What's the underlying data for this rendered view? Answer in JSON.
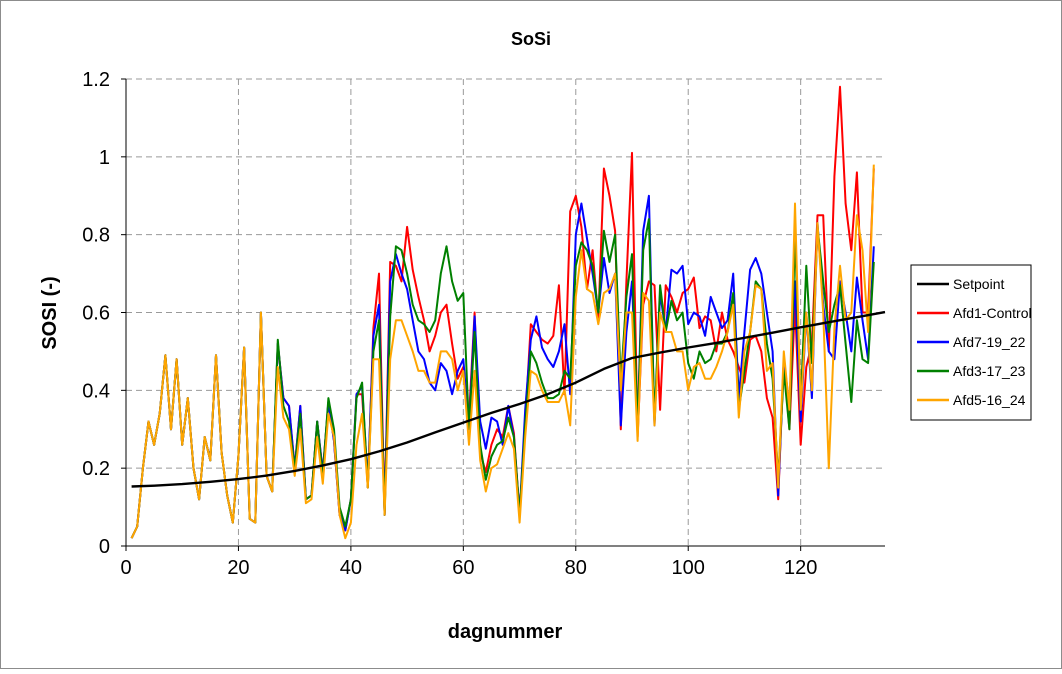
{
  "chart_data": {
    "type": "line",
    "title": "SoSi",
    "xlabel": "dagnummer",
    "ylabel": "SOSI (-)",
    "xlim": [
      0,
      135
    ],
    "ylim": [
      0,
      1.2
    ],
    "xticks": [
      0,
      20,
      40,
      60,
      80,
      100,
      120
    ],
    "yticks": [
      0,
      0.2,
      0.4,
      0.6,
      0.8,
      1,
      1.2
    ],
    "ytick_labels": [
      "0",
      "0.2",
      "0.4",
      "0.6",
      "0.8",
      "1",
      "1.2"
    ],
    "grid": true,
    "legend_position": "right",
    "series": [
      {
        "name": "Setpoint",
        "color": "#000000",
        "points": [
          [
            1,
            0.153
          ],
          [
            5,
            0.155
          ],
          [
            10,
            0.159
          ],
          [
            15,
            0.165
          ],
          [
            20,
            0.172
          ],
          [
            25,
            0.181
          ],
          [
            30,
            0.193
          ],
          [
            35,
            0.207
          ],
          [
            40,
            0.223
          ],
          [
            45,
            0.243
          ],
          [
            50,
            0.266
          ],
          [
            55,
            0.292
          ],
          [
            60,
            0.317
          ],
          [
            65,
            0.342
          ],
          [
            70,
            0.365
          ],
          [
            75,
            0.39
          ],
          [
            80,
            0.42
          ],
          [
            85,
            0.455
          ],
          [
            90,
            0.483
          ],
          [
            95,
            0.497
          ],
          [
            100,
            0.51
          ],
          [
            105,
            0.522
          ],
          [
            110,
            0.535
          ],
          [
            115,
            0.548
          ],
          [
            120,
            0.562
          ],
          [
            125,
            0.575
          ],
          [
            130,
            0.588
          ],
          [
            135,
            0.601
          ]
        ]
      },
      {
        "name": "Afd1-Control",
        "color": "#ff0000",
        "x": [
          1,
          2,
          3,
          4,
          5,
          6,
          7,
          8,
          9,
          10,
          11,
          12,
          13,
          14,
          15,
          16,
          17,
          18,
          19,
          20,
          21,
          22,
          23,
          24,
          25,
          26,
          27,
          28,
          29,
          30,
          31,
          32,
          33,
          34,
          35,
          36,
          37,
          38,
          39,
          40,
          41,
          42,
          43,
          44,
          45,
          46,
          47,
          48,
          49,
          50,
          51,
          52,
          53,
          54,
          55,
          56,
          57,
          58,
          59,
          60,
          61,
          62,
          63,
          64,
          65,
          66,
          67,
          68,
          69,
          70,
          71,
          72,
          73,
          74,
          75,
          76,
          77,
          78,
          79,
          80,
          81,
          82,
          83,
          84,
          85,
          86,
          87,
          88,
          89,
          90,
          91,
          92,
          93,
          94,
          95,
          96,
          97,
          98,
          99,
          100,
          101,
          102,
          103,
          104,
          105,
          106,
          107,
          108,
          109,
          110,
          111,
          112,
          113,
          114,
          115,
          116,
          117,
          118,
          119,
          120,
          121,
          122,
          123,
          124,
          125,
          126,
          127,
          128,
          129,
          130,
          131,
          132,
          133
        ],
        "values": [
          0.02,
          0.05,
          0.2,
          0.32,
          0.26,
          0.34,
          0.49,
          0.3,
          0.48,
          0.26,
          0.38,
          0.2,
          0.12,
          0.28,
          0.22,
          0.49,
          0.24,
          0.13,
          0.06,
          0.23,
          0.51,
          0.07,
          0.06,
          0.6,
          0.18,
          0.14,
          0.52,
          0.38,
          0.36,
          0.2,
          0.36,
          0.12,
          0.13,
          0.32,
          0.19,
          0.37,
          0.27,
          0.08,
          0.04,
          0.12,
          0.39,
          0.39,
          0.15,
          0.56,
          0.7,
          0.08,
          0.73,
          0.72,
          0.68,
          0.82,
          0.71,
          0.64,
          0.58,
          0.5,
          0.54,
          0.6,
          0.62,
          0.52,
          0.43,
          0.46,
          0.33,
          0.6,
          0.24,
          0.19,
          0.26,
          0.3,
          0.28,
          0.36,
          0.29,
          0.08,
          0.32,
          0.57,
          0.55,
          0.53,
          0.52,
          0.54,
          0.67,
          0.39,
          0.86,
          0.9,
          0.82,
          0.66,
          0.76,
          0.58,
          0.97,
          0.9,
          0.81,
          0.3,
          0.68,
          1.01,
          0.28,
          0.62,
          0.68,
          0.67,
          0.35,
          0.67,
          0.64,
          0.6,
          0.65,
          0.66,
          0.69,
          0.56,
          0.59,
          0.58,
          0.5,
          0.6,
          0.53,
          0.5,
          0.46,
          0.42,
          0.53,
          0.54,
          0.5,
          0.38,
          0.33,
          0.12,
          0.48,
          0.3,
          0.62,
          0.26,
          0.46,
          0.52,
          0.85,
          0.85,
          0.5,
          0.95,
          1.18,
          0.88,
          0.76,
          0.96,
          0.6,
          0.6,
          0.97
        ]
      },
      {
        "name": "Afd7-19_22",
        "color": "#0000ff",
        "x": [
          1,
          2,
          3,
          4,
          5,
          6,
          7,
          8,
          9,
          10,
          11,
          12,
          13,
          14,
          15,
          16,
          17,
          18,
          19,
          20,
          21,
          22,
          23,
          24,
          25,
          26,
          27,
          28,
          29,
          30,
          31,
          32,
          33,
          34,
          35,
          36,
          37,
          38,
          39,
          40,
          41,
          42,
          43,
          44,
          45,
          46,
          47,
          48,
          49,
          50,
          51,
          52,
          53,
          54,
          55,
          56,
          57,
          58,
          59,
          60,
          61,
          62,
          63,
          64,
          65,
          66,
          67,
          68,
          69,
          70,
          71,
          72,
          73,
          74,
          75,
          76,
          77,
          78,
          79,
          80,
          81,
          82,
          83,
          84,
          85,
          86,
          87,
          88,
          89,
          90,
          91,
          92,
          93,
          94,
          95,
          96,
          97,
          98,
          99,
          100,
          101,
          102,
          103,
          104,
          105,
          106,
          107,
          108,
          109,
          110,
          111,
          112,
          113,
          114,
          115,
          116,
          117,
          118,
          119,
          120,
          121,
          122,
          123,
          124,
          125,
          126,
          127,
          128,
          129,
          130,
          131,
          132,
          133
        ],
        "values": [
          0.02,
          0.05,
          0.2,
          0.32,
          0.26,
          0.34,
          0.49,
          0.3,
          0.48,
          0.26,
          0.38,
          0.2,
          0.12,
          0.28,
          0.22,
          0.49,
          0.24,
          0.13,
          0.06,
          0.23,
          0.51,
          0.07,
          0.06,
          0.6,
          0.18,
          0.14,
          0.52,
          0.38,
          0.36,
          0.2,
          0.36,
          0.12,
          0.13,
          0.32,
          0.19,
          0.37,
          0.27,
          0.08,
          0.04,
          0.12,
          0.39,
          0.41,
          0.16,
          0.54,
          0.62,
          0.08,
          0.68,
          0.75,
          0.7,
          0.66,
          0.58,
          0.5,
          0.48,
          0.42,
          0.4,
          0.47,
          0.45,
          0.39,
          0.45,
          0.48,
          0.3,
          0.59,
          0.32,
          0.25,
          0.33,
          0.32,
          0.26,
          0.36,
          0.28,
          0.08,
          0.35,
          0.53,
          0.59,
          0.51,
          0.48,
          0.46,
          0.5,
          0.57,
          0.39,
          0.8,
          0.88,
          0.79,
          0.7,
          0.6,
          0.74,
          0.65,
          0.7,
          0.31,
          0.55,
          0.68,
          0.3,
          0.81,
          0.9,
          0.31,
          0.65,
          0.55,
          0.71,
          0.7,
          0.72,
          0.57,
          0.6,
          0.59,
          0.54,
          0.64,
          0.6,
          0.56,
          0.58,
          0.7,
          0.38,
          0.55,
          0.71,
          0.74,
          0.7,
          0.6,
          0.5,
          0.13,
          0.48,
          0.36,
          0.68,
          0.32,
          0.6,
          0.38,
          0.83,
          0.62,
          0.5,
          0.48,
          0.68,
          0.6,
          0.5,
          0.69,
          0.58,
          0.48,
          0.77
        ]
      },
      {
        "name": "Afd3-17_23",
        "color": "#008000",
        "x": [
          1,
          2,
          3,
          4,
          5,
          6,
          7,
          8,
          9,
          10,
          11,
          12,
          13,
          14,
          15,
          16,
          17,
          18,
          19,
          20,
          21,
          22,
          23,
          24,
          25,
          26,
          27,
          28,
          29,
          30,
          31,
          32,
          33,
          34,
          35,
          36,
          37,
          38,
          39,
          40,
          41,
          42,
          43,
          44,
          45,
          46,
          47,
          48,
          49,
          50,
          51,
          52,
          53,
          54,
          55,
          56,
          57,
          58,
          59,
          60,
          61,
          62,
          63,
          64,
          65,
          66,
          67,
          68,
          69,
          70,
          71,
          72,
          73,
          74,
          75,
          76,
          77,
          78,
          79,
          80,
          81,
          82,
          83,
          84,
          85,
          86,
          87,
          88,
          89,
          90,
          91,
          92,
          93,
          94,
          95,
          96,
          97,
          98,
          99,
          100,
          101,
          102,
          103,
          104,
          105,
          106,
          107,
          108,
          109,
          110,
          111,
          112,
          113,
          114,
          115,
          116,
          117,
          118,
          119,
          120,
          121,
          122,
          123,
          124,
          125,
          126,
          127,
          128,
          129,
          130,
          131,
          132,
          133
        ],
        "values": [
          0.02,
          0.05,
          0.2,
          0.32,
          0.26,
          0.34,
          0.49,
          0.3,
          0.48,
          0.26,
          0.38,
          0.2,
          0.12,
          0.28,
          0.22,
          0.49,
          0.24,
          0.13,
          0.06,
          0.23,
          0.51,
          0.07,
          0.06,
          0.6,
          0.18,
          0.14,
          0.53,
          0.36,
          0.32,
          0.2,
          0.34,
          0.12,
          0.13,
          0.32,
          0.18,
          0.38,
          0.3,
          0.1,
          0.05,
          0.12,
          0.38,
          0.42,
          0.15,
          0.5,
          0.58,
          0.08,
          0.59,
          0.77,
          0.76,
          0.7,
          0.62,
          0.58,
          0.57,
          0.55,
          0.58,
          0.7,
          0.77,
          0.68,
          0.63,
          0.65,
          0.3,
          0.55,
          0.26,
          0.17,
          0.23,
          0.26,
          0.27,
          0.33,
          0.28,
          0.08,
          0.31,
          0.5,
          0.47,
          0.42,
          0.38,
          0.38,
          0.39,
          0.45,
          0.43,
          0.72,
          0.78,
          0.76,
          0.72,
          0.6,
          0.81,
          0.73,
          0.8,
          0.42,
          0.64,
          0.75,
          0.3,
          0.76,
          0.84,
          0.32,
          0.67,
          0.55,
          0.63,
          0.58,
          0.6,
          0.47,
          0.43,
          0.5,
          0.47,
          0.48,
          0.52,
          0.52,
          0.55,
          0.65,
          0.35,
          0.45,
          0.55,
          0.68,
          0.66,
          0.52,
          0.43,
          0.17,
          0.45,
          0.3,
          0.8,
          0.36,
          0.72,
          0.47,
          0.82,
          0.68,
          0.55,
          0.62,
          0.67,
          0.52,
          0.37,
          0.58,
          0.48,
          0.47,
          0.73
        ]
      },
      {
        "name": "Afd5-16_24",
        "color": "#ffa500",
        "x": [
          1,
          2,
          3,
          4,
          5,
          6,
          7,
          8,
          9,
          10,
          11,
          12,
          13,
          14,
          15,
          16,
          17,
          18,
          19,
          20,
          21,
          22,
          23,
          24,
          25,
          26,
          27,
          28,
          29,
          30,
          31,
          32,
          33,
          34,
          35,
          36,
          37,
          38,
          39,
          40,
          41,
          42,
          43,
          44,
          45,
          46,
          47,
          48,
          49,
          50,
          51,
          52,
          53,
          54,
          55,
          56,
          57,
          58,
          59,
          60,
          61,
          62,
          63,
          64,
          65,
          66,
          67,
          68,
          69,
          70,
          71,
          72,
          73,
          74,
          75,
          76,
          77,
          78,
          79,
          80,
          81,
          82,
          83,
          84,
          85,
          86,
          87,
          88,
          89,
          90,
          91,
          92,
          93,
          94,
          95,
          96,
          97,
          98,
          99,
          100,
          101,
          102,
          103,
          104,
          105,
          106,
          107,
          108,
          109,
          110,
          111,
          112,
          113,
          114,
          115,
          116,
          117,
          118,
          119,
          120,
          121,
          122,
          123,
          124,
          125,
          126,
          127,
          128,
          129,
          130,
          131,
          132,
          133
        ],
        "values": [
          0.02,
          0.05,
          0.2,
          0.32,
          0.26,
          0.34,
          0.49,
          0.3,
          0.48,
          0.26,
          0.38,
          0.2,
          0.12,
          0.28,
          0.22,
          0.49,
          0.24,
          0.13,
          0.06,
          0.23,
          0.51,
          0.07,
          0.06,
          0.6,
          0.18,
          0.14,
          0.46,
          0.33,
          0.3,
          0.18,
          0.3,
          0.11,
          0.12,
          0.28,
          0.16,
          0.34,
          0.28,
          0.08,
          0.02,
          0.06,
          0.26,
          0.34,
          0.15,
          0.48,
          0.48,
          0.08,
          0.48,
          0.58,
          0.58,
          0.54,
          0.5,
          0.45,
          0.45,
          0.42,
          0.42,
          0.5,
          0.5,
          0.48,
          0.4,
          0.45,
          0.26,
          0.45,
          0.22,
          0.14,
          0.2,
          0.21,
          0.25,
          0.29,
          0.25,
          0.06,
          0.28,
          0.45,
          0.44,
          0.4,
          0.37,
          0.37,
          0.37,
          0.4,
          0.31,
          0.64,
          0.76,
          0.66,
          0.65,
          0.57,
          0.65,
          0.66,
          0.7,
          0.4,
          0.6,
          0.6,
          0.27,
          0.65,
          0.63,
          0.31,
          0.6,
          0.55,
          0.55,
          0.5,
          0.5,
          0.4,
          0.46,
          0.47,
          0.43,
          0.43,
          0.46,
          0.5,
          0.55,
          0.62,
          0.33,
          0.5,
          0.55,
          0.67,
          0.66,
          0.45,
          0.47,
          0.15,
          0.5,
          0.35,
          0.88,
          0.35,
          0.6,
          0.4,
          0.83,
          0.6,
          0.2,
          0.56,
          0.72,
          0.58,
          0.6,
          0.85,
          0.76,
          0.55,
          0.98
        ]
      }
    ]
  }
}
